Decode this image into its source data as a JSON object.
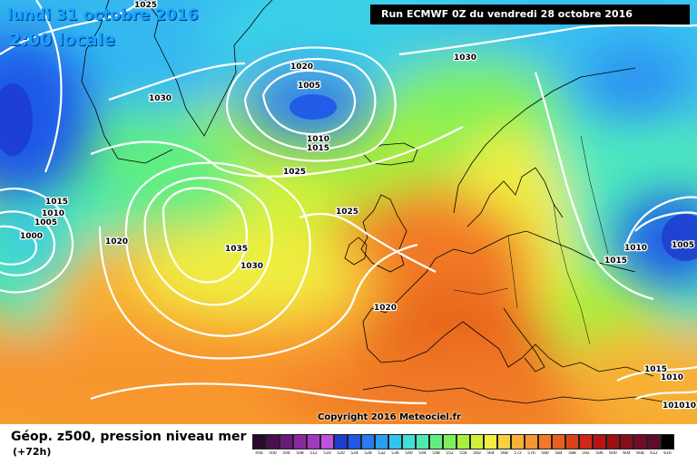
{
  "header": {
    "date": "lundi 31 octobre 2016",
    "time": "2:00 locale",
    "run": "Run ECMWF 0Z du vendredi 28 octobre 2016"
  },
  "copyright": "Copyright 2016 Meteociel.fr",
  "legend": {
    "title": "Géop. z500, pression niveau mer",
    "lead": "(+72h)",
    "levels": [
      "456",
      "500",
      "504",
      "508",
      "512",
      "516",
      "520",
      "524",
      "528",
      "532",
      "536",
      "540",
      "544",
      "548",
      "552",
      "556",
      "560",
      "564",
      "568",
      "572",
      "576",
      "580",
      "584",
      "588",
      "592",
      "596",
      "600",
      "604",
      "608",
      "612",
      "616"
    ],
    "colors": [
      "#2a0a2a",
      "#4a0f52",
      "#6a1a78",
      "#8a2aa0",
      "#a23ac0",
      "#c050e0",
      "#1e3ccf",
      "#1f56e8",
      "#2a7af0",
      "#2aa0f5",
      "#30c6f0",
      "#3ee0d8",
      "#4ee8b0",
      "#60ee80",
      "#7ef05a",
      "#a6f03c",
      "#d0f03a",
      "#f0ee40",
      "#f8d040",
      "#f8b036",
      "#f8962e",
      "#f27a26",
      "#e85e20",
      "#dc421a",
      "#d02816",
      "#b81414",
      "#9e1010",
      "#880e1a",
      "#740c28",
      "#600a30",
      "#000000"
    ]
  },
  "isobars": [
    {
      "label": "1025"
    },
    {
      "label": "1020"
    },
    {
      "label": "1005"
    },
    {
      "label": "1030"
    },
    {
      "label": "1030"
    },
    {
      "label": "1010"
    },
    {
      "label": "1015"
    },
    {
      "label": "1025"
    },
    {
      "label": "1015"
    },
    {
      "label": "1010"
    },
    {
      "label": "1005"
    },
    {
      "label": "1000"
    },
    {
      "label": "1020"
    },
    {
      "label": "1035"
    },
    {
      "label": "1030"
    },
    {
      "label": "1025"
    },
    {
      "label": "1020"
    },
    {
      "label": "1010"
    },
    {
      "label": "1005"
    },
    {
      "label": "1015"
    },
    {
      "label": "1015"
    },
    {
      "label": "1010"
    },
    {
      "label": "1015"
    },
    {
      "label": "1010"
    }
  ],
  "colors": {
    "title_blue": "#1aa0ff",
    "isobar": "#ffffff",
    "coast": "#000000"
  }
}
